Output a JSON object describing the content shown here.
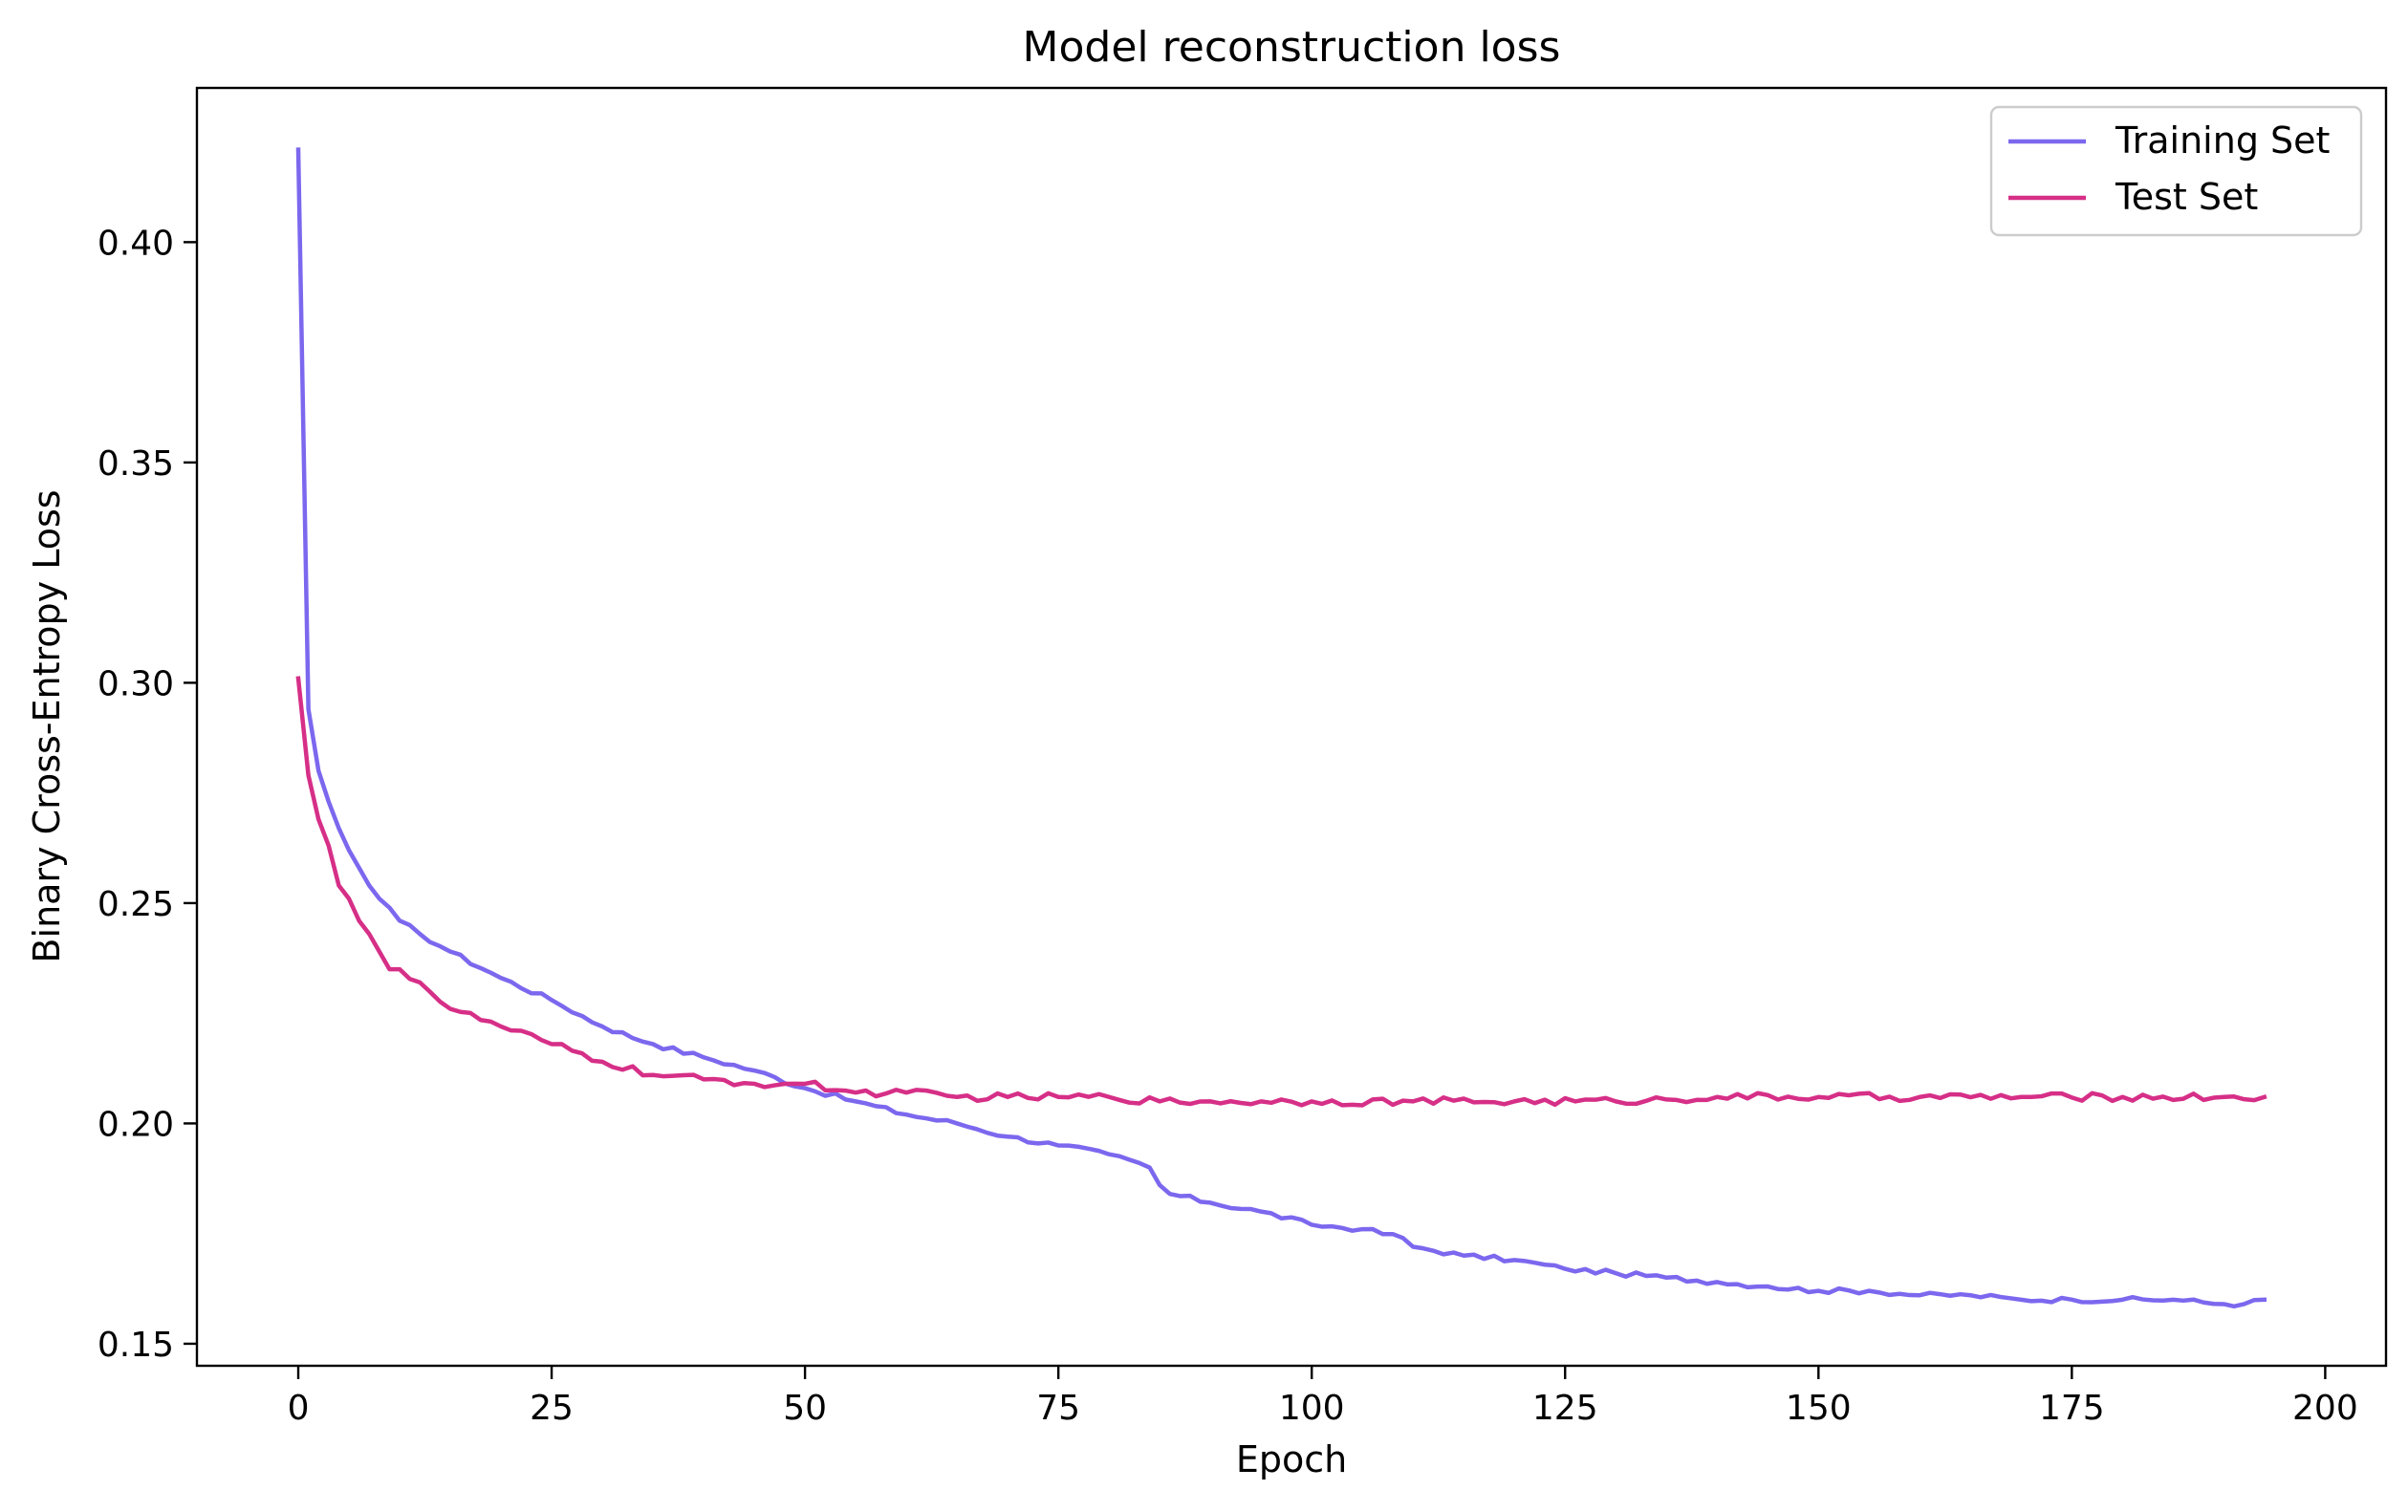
{
  "chart_data": {
    "type": "line",
    "title": "Model reconstruction loss",
    "xlabel": "Epoch",
    "ylabel": "Binary Cross-Entropy Loss",
    "xlim": [
      -10,
      206
    ],
    "ylim": [
      0.145,
      0.435
    ],
    "xticks": [
      0,
      25,
      50,
      75,
      100,
      125,
      150,
      175,
      200
    ],
    "yticks": [
      0.15,
      0.2,
      0.25,
      0.3,
      0.35,
      0.4
    ],
    "ytick_labels": [
      "0.15",
      "0.20",
      "0.25",
      "0.30",
      "0.35",
      "0.40"
    ],
    "grid": false,
    "legend_position": "top-right",
    "series": [
      {
        "name": "Training Set",
        "color": "#7b68ee",
        "keypoints": [
          [
            0,
            0.421
          ],
          [
            1,
            0.294
          ],
          [
            2,
            0.28
          ],
          [
            3,
            0.273
          ],
          [
            4,
            0.267
          ],
          [
            5,
            0.262
          ],
          [
            6,
            0.258
          ],
          [
            7,
            0.254
          ],
          [
            8,
            0.251
          ],
          [
            10,
            0.246
          ],
          [
            12,
            0.243
          ],
          [
            15,
            0.239
          ],
          [
            20,
            0.233
          ],
          [
            25,
            0.228
          ],
          [
            30,
            0.222
          ],
          [
            35,
            0.218
          ],
          [
            40,
            0.215
          ],
          [
            45,
            0.212
          ],
          [
            50,
            0.208
          ],
          [
            55,
            0.205
          ],
          [
            60,
            0.202
          ],
          [
            65,
            0.2
          ],
          [
            70,
            0.197
          ],
          [
            75,
            0.195
          ],
          [
            80,
            0.193
          ],
          [
            83,
            0.191
          ],
          [
            84,
            0.19
          ],
          [
            85,
            0.186
          ],
          [
            86,
            0.184
          ],
          [
            90,
            0.182
          ],
          [
            95,
            0.18
          ],
          [
            100,
            0.177
          ],
          [
            105,
            0.176
          ],
          [
            109,
            0.174
          ],
          [
            110,
            0.172
          ],
          [
            115,
            0.17
          ],
          [
            120,
            0.169
          ],
          [
            125,
            0.167
          ],
          [
            130,
            0.166
          ],
          [
            135,
            0.165
          ],
          [
            140,
            0.164
          ],
          [
            145,
            0.163
          ],
          [
            150,
            0.162
          ],
          [
            155,
            0.162
          ],
          [
            160,
            0.161
          ],
          [
            165,
            0.161
          ],
          [
            170,
            0.16
          ],
          [
            175,
            0.16
          ],
          [
            180,
            0.16
          ],
          [
            185,
            0.16
          ],
          [
            190,
            0.159
          ],
          [
            192,
            0.159
          ],
          [
            194,
            0.16
          ]
        ],
        "noise": 0.0006
      },
      {
        "name": "Test Set",
        "color": "#d62f87",
        "keypoints": [
          [
            0,
            0.301
          ],
          [
            1,
            0.279
          ],
          [
            2,
            0.269
          ],
          [
            3,
            0.263
          ],
          [
            4,
            0.254
          ],
          [
            5,
            0.251
          ],
          [
            6,
            0.246
          ],
          [
            7,
            0.243
          ],
          [
            8,
            0.239
          ],
          [
            9,
            0.235
          ],
          [
            10,
            0.235
          ],
          [
            12,
            0.232
          ],
          [
            15,
            0.226
          ],
          [
            20,
            0.222
          ],
          [
            25,
            0.218
          ],
          [
            30,
            0.214
          ],
          [
            35,
            0.211
          ],
          [
            40,
            0.21
          ],
          [
            45,
            0.209
          ],
          [
            50,
            0.209
          ],
          [
            55,
            0.207
          ],
          [
            60,
            0.207
          ],
          [
            65,
            0.206
          ],
          [
            70,
            0.206
          ],
          [
            75,
            0.206
          ],
          [
            80,
            0.206
          ],
          [
            85,
            0.205
          ],
          [
            90,
            0.205
          ],
          [
            95,
            0.205
          ],
          [
            100,
            0.205
          ],
          [
            110,
            0.205
          ],
          [
            120,
            0.205
          ],
          [
            130,
            0.205
          ],
          [
            140,
            0.206
          ],
          [
            150,
            0.206
          ],
          [
            160,
            0.206
          ],
          [
            170,
            0.206
          ],
          [
            180,
            0.206
          ],
          [
            190,
            0.206
          ],
          [
            194,
            0.206
          ]
        ],
        "noise": 0.0009
      }
    ]
  }
}
